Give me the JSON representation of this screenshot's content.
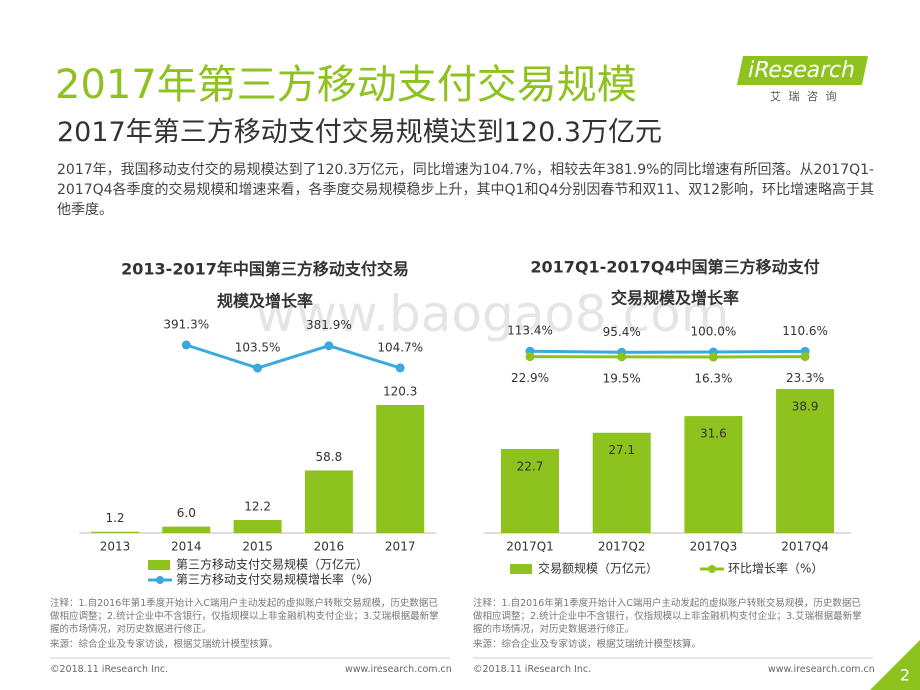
{
  "title": "2017年第三方移动支付交易规模",
  "subtitle": "2017年第三方移动支付交易规模达到120.3万亿元",
  "body": "2017年，我国移动支付交的易规模达到了120.3万亿元，同比增速为104.7%，相较去年381.9%的同比增速有所回落。从2017Q1-2017Q4各季度的交易规模和增速来看，各季度交易规模稳步上升，其中Q1和Q4分别因春节和双11、双12影响，环比增速略高于其他季度。",
  "logo": {
    "name": "iResearch",
    "tagline": "艾 瑞 咨 询"
  },
  "watermark": "www.baogao8.com",
  "chart_data": [
    {
      "type": "bar",
      "title": [
        "2013-2017年中国第三方移动支付交易",
        "规模及增长率"
      ],
      "categories": [
        "2013",
        "2014",
        "2015",
        "2016",
        "2017"
      ],
      "series": [
        {
          "name": "第三方移动支付交易规模（万亿元）",
          "type": "bar",
          "color": "#8dc21f",
          "values": [
            1.2,
            6.0,
            12.2,
            58.8,
            120.3
          ],
          "value_labels": [
            "1.2",
            "6.0",
            "12.2",
            "58.8",
            "120.3"
          ]
        },
        {
          "name": "第三方移动支付交易规模增长率（%）",
          "type": "line",
          "color": "#3ba8e0",
          "values": [
            null,
            391.3,
            103.5,
            381.9,
            104.7
          ],
          "value_labels": [
            null,
            "391.3%",
            "103.5%",
            "381.9%",
            "104.7%"
          ]
        }
      ]
    },
    {
      "type": "bar",
      "title": [
        "2017Q1-2017Q4中国第三方移动支付",
        "交易规模及增长率"
      ],
      "categories": [
        "2017Q1",
        "2017Q2",
        "2017Q3",
        "2017Q4"
      ],
      "series": [
        {
          "name": "交易额规模（万亿元）",
          "type": "bar",
          "color": "#8dc21f",
          "values": [
            22.7,
            27.1,
            31.6,
            38.9
          ]
        },
        {
          "type": "line",
          "color": "#3ba8e0",
          "values": [
            113.4,
            95.4,
            100.0,
            110.6
          ],
          "value_labels": [
            "113.4%",
            "95.4%",
            "100.0%",
            "110.6%"
          ]
        },
        {
          "name": "环比增长率（%）",
          "type": "line",
          "color": "#8dc21f",
          "values": [
            22.9,
            19.5,
            16.3,
            23.3
          ],
          "value_labels": [
            "22.9%",
            "19.5%",
            "16.3%",
            "23.3%"
          ]
        }
      ]
    }
  ],
  "notes": [
    {
      "note": "注释：1.自2016年第1季度开始计入C端用户主动发起的虚拟账户转账交易规模，历史数据已做相应调整；2.统计企业中不含银行，仅指规模以上非金融机构支付企业；3.艾瑞根据最新掌握的市场情况，对历史数据进行修正。",
      "source": "来源：综合企业及专家访谈，根据艾瑞统计模型核算。"
    },
    {
      "note": "注释：1.自2016年第1季度开始计入C端用户主动发起的虚拟账户转账交易规模，历史数据已做相应调整；2.统计企业中不含银行，仅指规模以上非金融机构支付企业；3.艾瑞根据最新掌握的市场情况，对历史数据进行修正。",
      "source": "来源：综合企业及专家访谈，根据艾瑞统计模型核算。"
    }
  ],
  "footer": {
    "copyright": "©2018.11 iResearch Inc.",
    "url": "www.iresearch.com.cn",
    "page": "2"
  }
}
